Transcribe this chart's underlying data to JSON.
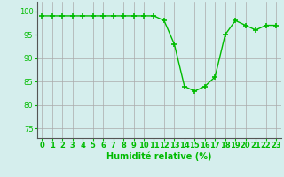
{
  "x": [
    0,
    1,
    2,
    3,
    4,
    5,
    6,
    7,
    8,
    9,
    10,
    11,
    12,
    13,
    14,
    15,
    16,
    17,
    18,
    19,
    20,
    21,
    22,
    23
  ],
  "y": [
    99,
    99,
    99,
    99,
    99,
    99,
    99,
    99,
    99,
    99,
    99,
    99,
    98,
    93,
    84,
    83,
    84,
    86,
    95,
    98,
    97,
    96,
    97,
    97
  ],
  "line_color": "#00bb00",
  "marker": "P",
  "marker_size": 2.5,
  "bg_color": "#d5eeed",
  "grid_color": "#aaaaaa",
  "xlabel": "Humidité relative (%)",
  "xlabel_color": "#00bb00",
  "xlabel_fontsize": 7,
  "tick_color": "#00bb00",
  "tick_fontsize": 6,
  "ylim": [
    73,
    102
  ],
  "xlim": [
    -0.5,
    23.5
  ],
  "yticks": [
    75,
    80,
    85,
    90,
    95,
    100
  ],
  "xticks": [
    0,
    1,
    2,
    3,
    4,
    5,
    6,
    7,
    8,
    9,
    10,
    11,
    12,
    13,
    14,
    15,
    16,
    17,
    18,
    19,
    20,
    21,
    22,
    23
  ]
}
